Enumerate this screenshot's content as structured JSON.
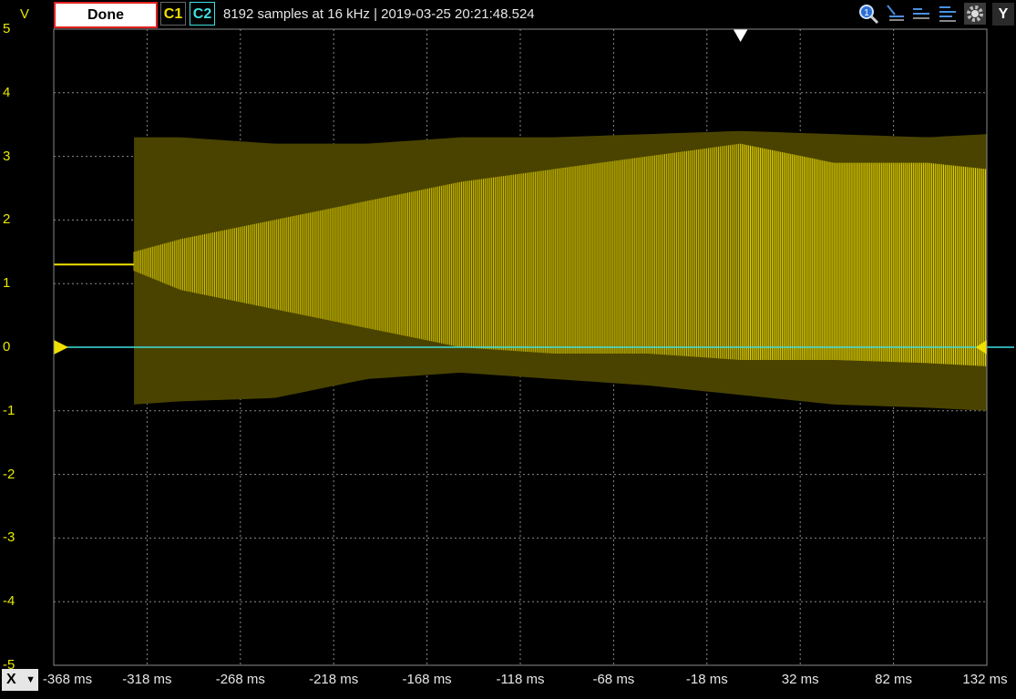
{
  "toolbar": {
    "y_unit": "V",
    "done_label": "Done",
    "channel1_label": "C1",
    "channel2_label": "C2",
    "info": "8192 samples at 16 kHz | 2019-03-25 20:21:48.524",
    "icons": [
      "zoom-icon",
      "cursor-1-icon",
      "cursor-2-icon",
      "cursor-3-icon",
      "settings-gear-icon"
    ],
    "y_button_label": "Y"
  },
  "x_axis": {
    "selector_label": "X",
    "ticks": [
      "-368 ms",
      "-318 ms",
      "-268 ms",
      "-218 ms",
      "-168 ms",
      "-118 ms",
      "-68 ms",
      "-18 ms",
      "32 ms",
      "82 ms",
      "132 ms"
    ]
  },
  "y_axis": {
    "ticks": [
      "5",
      "4",
      "3",
      "2",
      "1",
      "0",
      "-1",
      "-2",
      "-3",
      "-4",
      "-5"
    ]
  },
  "colors": {
    "channel1": "#f0e000",
    "channel1_envelope": "#4a4300",
    "channel2": "#40e0e0",
    "grid": "#8a8a8a",
    "background": "#000000"
  },
  "chart_data": {
    "type": "line",
    "xlabel": "",
    "ylabel": "V",
    "xlim": [
      -368,
      132
    ],
    "ylim": [
      -5,
      5
    ],
    "grid": true,
    "series": [
      {
        "name": "C1",
        "x": [
          -368,
          -330,
          -325,
          -300,
          -250,
          -200,
          -150,
          -100,
          -50,
          0,
          50,
          100,
          132
        ],
        "upper": [
          1.3,
          1.3,
          1.5,
          1.7,
          2.0,
          2.3,
          2.6,
          2.8,
          3.0,
          3.2,
          2.9,
          2.9,
          2.8
        ],
        "lower": [
          1.3,
          1.3,
          1.2,
          0.9,
          0.6,
          0.3,
          0.0,
          -0.1,
          -0.1,
          -0.2,
          -0.2,
          -0.25,
          -0.3
        ],
        "envelope_upper": [
          1.3,
          1.3,
          3.3,
          3.3,
          3.2,
          3.2,
          3.3,
          3.3,
          3.35,
          3.4,
          3.35,
          3.3,
          3.35
        ],
        "envelope_lower": [
          1.3,
          1.3,
          -0.9,
          -0.85,
          -0.8,
          -0.5,
          -0.4,
          -0.5,
          -0.6,
          -0.75,
          -0.9,
          -0.95,
          -1.0
        ]
      },
      {
        "name": "C2",
        "x": [
          -368,
          132
        ],
        "values": [
          0,
          0
        ]
      }
    ],
    "trigger": {
      "x_ms": 0,
      "level_v": 0
    }
  }
}
